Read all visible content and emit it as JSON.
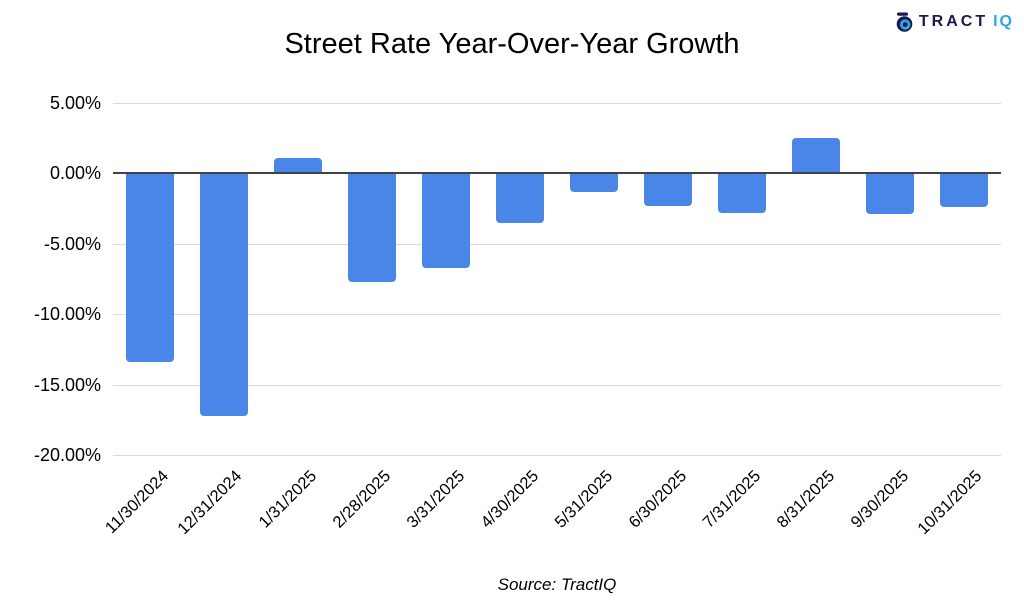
{
  "logo": {
    "brand_primary": "TRACT",
    "brand_accent": "IQ"
  },
  "chart_data": {
    "type": "bar",
    "title": "Street Rate Year-Over-Year Growth",
    "categories": [
      "11/30/2024",
      "12/31/2024",
      "1/31/2025",
      "2/28/2025",
      "3/31/2025",
      "4/30/2025",
      "5/31/2025",
      "6/30/2025",
      "7/31/2025",
      "8/31/2025",
      "9/30/2025",
      "10/31/2025"
    ],
    "values": [
      -13.4,
      -17.2,
      1.1,
      -7.7,
      -6.7,
      -3.5,
      -1.3,
      -2.3,
      -2.8,
      2.5,
      -2.9,
      -2.4
    ],
    "xlabel": "",
    "ylabel": "",
    "ylim": [
      -20,
      5
    ],
    "y_ticks": [
      5,
      0,
      -5,
      -10,
      -15,
      -20
    ],
    "y_tick_labels": [
      "5.00%",
      "0.00%",
      "-5.00%",
      "-10.00%",
      "-15.00%",
      "-20.00%"
    ],
    "grid": true,
    "legend_position": "none"
  },
  "source_note": "Source: TractIQ",
  "colors": {
    "bar": "#4A86E8",
    "grid": "#DADADA",
    "zero_line": "#424242",
    "logo_navy": "#1A1A4E",
    "logo_blue": "#29A9E1",
    "text": "#000000"
  }
}
